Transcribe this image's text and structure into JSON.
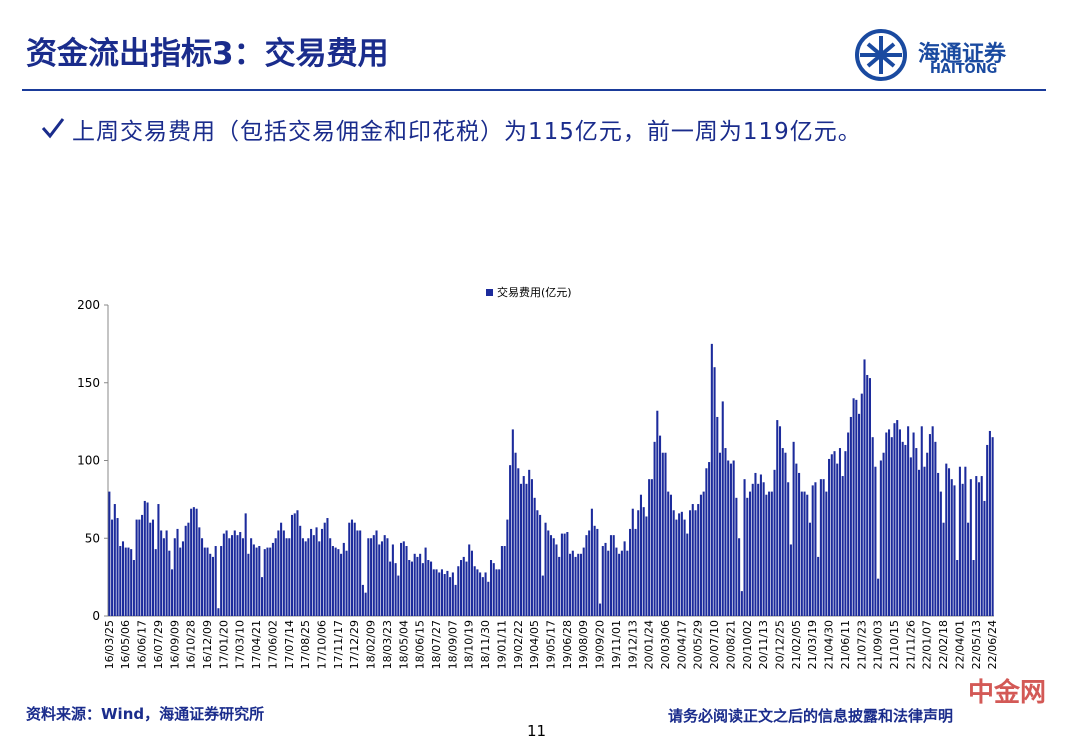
{
  "header": {
    "title": "资金流出指标3：交易费用",
    "logo_cn": "海通证券",
    "logo_en": "HAITONG"
  },
  "bullet": "上周交易费用（包括交易佣金和印花税）为115亿元，前一周为119亿元。",
  "chart_data": {
    "type": "bar",
    "color": "#1c2b9c",
    "ylim": [
      0,
      200
    ],
    "yticks": [
      0,
      50,
      100,
      150,
      200
    ],
    "grid": false,
    "legend": "top",
    "series": [
      {
        "name": "交易费用(亿元)",
        "color": "#1c2b9c",
        "values": [
          80,
          62,
          72,
          63,
          45,
          48,
          44,
          44,
          43,
          36,
          62,
          62,
          65,
          74,
          73,
          60,
          62,
          43,
          72,
          55,
          50,
          55,
          42,
          30,
          50,
          56,
          44,
          48,
          58,
          60,
          69,
          70,
          69,
          57,
          50,
          44,
          44,
          40,
          38,
          45,
          5,
          45,
          53,
          55,
          50,
          52,
          55,
          52,
          54,
          50,
          66,
          40,
          50,
          46,
          44,
          45,
          25,
          43,
          44,
          44,
          47,
          50,
          55,
          60,
          55,
          50,
          50,
          65,
          66,
          68,
          58,
          50,
          48,
          50,
          56,
          52,
          57,
          48,
          56,
          60,
          63,
          50,
          45,
          44,
          43,
          40,
          47,
          42,
          60,
          62,
          60,
          55,
          55,
          20,
          15,
          50,
          50,
          52,
          55,
          46,
          48,
          52,
          50,
          35,
          46,
          34,
          26,
          47,
          48,
          45,
          36,
          35,
          40,
          38,
          40,
          34,
          44,
          36,
          35,
          30,
          30,
          28,
          30,
          27,
          29,
          25,
          28,
          20,
          32,
          36,
          38,
          35,
          46,
          42,
          32,
          30,
          28,
          25,
          28,
          22,
          36,
          34,
          30,
          30,
          45,
          45,
          62,
          97,
          120,
          105,
          95,
          85,
          90,
          85,
          94,
          88,
          76,
          68,
          65,
          26,
          60,
          55,
          52,
          50,
          46,
          38,
          53,
          53,
          54,
          40,
          42,
          38,
          40,
          40,
          44,
          52,
          55,
          69,
          58,
          56,
          8,
          45,
          47,
          42,
          52,
          52,
          44,
          40,
          42,
          48,
          42,
          56,
          69,
          56,
          68,
          78,
          70,
          64,
          88,
          88,
          112,
          132,
          116,
          105,
          105,
          80,
          78,
          68,
          62,
          66,
          67,
          62,
          53,
          68,
          72,
          68,
          72,
          78,
          80,
          95,
          99,
          175,
          160,
          128,
          105,
          138,
          108,
          100,
          98,
          100,
          76,
          50,
          16,
          88,
          76,
          80,
          85,
          92,
          85,
          91,
          86,
          78,
          80,
          80,
          94,
          126,
          122,
          108,
          105,
          86,
          46,
          112,
          98,
          92,
          80,
          80,
          78,
          60,
          84,
          86,
          38,
          88,
          88,
          80,
          101,
          104,
          106,
          98,
          108,
          90,
          106,
          118,
          128,
          140,
          139,
          130,
          143,
          165,
          155,
          153,
          115,
          96,
          24,
          100,
          105,
          118,
          120,
          115,
          124,
          126,
          120,
          112,
          110,
          122,
          102,
          118,
          108,
          94,
          122,
          96,
          105,
          117,
          122,
          112,
          92,
          80,
          60,
          98,
          95,
          88,
          84,
          36,
          96,
          85,
          96,
          60,
          88,
          36,
          90,
          86,
          90,
          74,
          110,
          119,
          115
        ]
      }
    ],
    "categories": [
      "16/03/25",
      null,
      null,
      null,
      null,
      null,
      "16/05/06",
      null,
      null,
      null,
      null,
      null,
      "16/06/17",
      null,
      null,
      null,
      null,
      null,
      "16/07/29",
      null,
      null,
      null,
      null,
      null,
      "16/09/09",
      null,
      null,
      null,
      null,
      null,
      "16/10/28",
      null,
      null,
      null,
      null,
      null,
      "16/12/09",
      null,
      null,
      null,
      null,
      null,
      "17/01/20",
      null,
      null,
      null,
      null,
      null,
      "17/03/10",
      null,
      null,
      null,
      null,
      null,
      "17/04/21",
      null,
      null,
      null,
      null,
      null,
      "17/06/02",
      null,
      null,
      null,
      null,
      null,
      "17/07/14",
      null,
      null,
      null,
      null,
      null,
      "17/08/25",
      null,
      null,
      null,
      null,
      null,
      "17/10/06",
      null,
      null,
      null,
      null,
      null,
      "17/11/17",
      null,
      null,
      null,
      null,
      null,
      "17/12/29",
      null,
      null,
      null,
      null,
      null,
      "18/02/09",
      null,
      null,
      null,
      null,
      null,
      "18/03/23",
      null,
      null,
      null,
      null,
      null,
      "18/05/04",
      null,
      null,
      null,
      null,
      null,
      "18/06/15",
      null,
      null,
      null,
      null,
      null,
      "18/07/27",
      null,
      null,
      null,
      null,
      null,
      "18/09/07",
      null,
      null,
      null,
      null,
      null,
      "18/10/19",
      null,
      null,
      null,
      null,
      null,
      "18/11/30",
      null,
      null,
      null,
      null,
      null,
      "19/01/11",
      null,
      null,
      null,
      null,
      null,
      "19/02/22",
      null,
      null,
      null,
      null,
      null,
      "19/04/05",
      null,
      null,
      null,
      null,
      null,
      "19/05/17",
      null,
      null,
      null,
      null,
      null,
      "19/06/28",
      null,
      null,
      null,
      null,
      null,
      "19/08/09",
      null,
      null,
      null,
      null,
      null,
      "19/09/20",
      null,
      null,
      null,
      null,
      null,
      "19/11/01",
      null,
      null,
      null,
      null,
      null,
      "19/12/13",
      null,
      null,
      null,
      null,
      null,
      "20/01/24",
      null,
      null,
      null,
      null,
      null,
      "20/03/06",
      null,
      null,
      null,
      null,
      null,
      "20/04/17",
      null,
      null,
      null,
      null,
      null,
      "20/05/29",
      null,
      null,
      null,
      null,
      null,
      "20/07/10",
      null,
      null,
      null,
      null,
      null,
      "20/08/21",
      null,
      null,
      null,
      null,
      null,
      "20/10/02",
      null,
      null,
      null,
      null,
      null,
      "20/11/13",
      null,
      null,
      null,
      null,
      null,
      "20/12/25",
      null,
      null,
      null,
      null,
      null,
      "21/02/05",
      null,
      null,
      null,
      null,
      null,
      "21/03/19",
      null,
      null,
      null,
      null,
      null,
      "21/04/30",
      null,
      null,
      null,
      null,
      null,
      "21/06/11",
      null,
      null,
      null,
      null,
      null,
      "21/07/23",
      null,
      null,
      null,
      null,
      null,
      "21/09/03",
      null,
      null,
      null,
      null,
      null,
      "21/10/15",
      null,
      null,
      null,
      null,
      null,
      "21/11/26",
      null,
      null,
      null,
      null,
      null,
      "22/01/07",
      null,
      null,
      null,
      null,
      null,
      "22/02/18",
      null,
      null,
      null,
      null,
      null,
      "22/04/01",
      null,
      null,
      null,
      null,
      null,
      "22/05/13",
      null,
      null,
      null,
      null,
      null,
      "22/06/24"
    ]
  },
  "footer": {
    "source": "资料来源：Wind，海通证券研究所",
    "page": "11",
    "disclaimer": "请务必阅读正文之后的信息披露和法律声明",
    "watermark": "中金网"
  }
}
